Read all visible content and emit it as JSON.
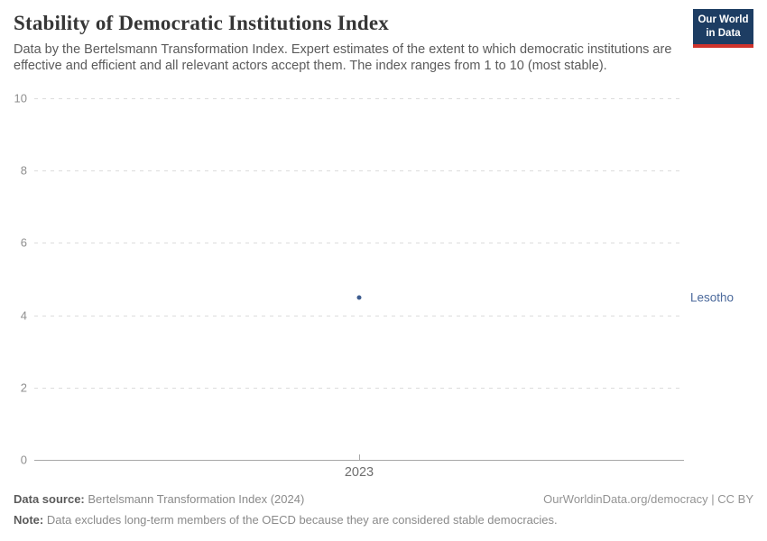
{
  "header": {
    "title": "Stability of Democratic Institutions Index",
    "subtitle": "Data by the Bertelsmann Transformation Index. Expert estimates of the extent to which democratic institutions are effective and efficient and all relevant actors accept them. The index ranges from 1 to 10 (most stable).",
    "logo": {
      "line1": "Our World",
      "line2": "in Data",
      "bg_color": "#1d3d63",
      "accent_color": "#cf332c"
    }
  },
  "chart_data": {
    "type": "scatter",
    "title": "Stability of Democratic Institutions Index",
    "x": [
      2023
    ],
    "x_ticks": [
      "2023"
    ],
    "series": [
      {
        "name": "Lesotho",
        "x": [
          2023
        ],
        "values": [
          4.5
        ],
        "color": "#3d5c8f"
      }
    ],
    "entity_label": "Lesotho",
    "entity_label_color": "#4c6a9c",
    "ylim": [
      0,
      10
    ],
    "y_ticks": [
      0,
      2,
      4,
      6,
      8,
      10
    ],
    "grid": "horizontal dashed",
    "gridline_color": "#dcdcdc",
    "axis_color": "#a8a8a8",
    "legend": "none"
  },
  "footer": {
    "source_label": "Data source:",
    "source_value": "Bertelsmann Transformation Index (2024)",
    "rights": "OurWorldinData.org/democracy | CC BY",
    "note_label": "Note:",
    "note_value": "Data excludes long-term members of the OECD because they are considered stable democracies."
  }
}
